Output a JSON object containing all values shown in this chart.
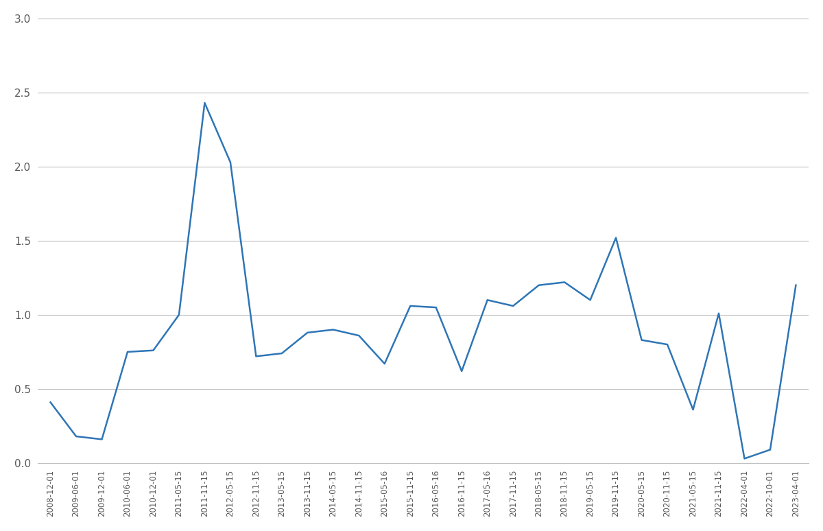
{
  "labels": [
    "2008-12-01",
    "2009-06-01",
    "2009-12-01",
    "2010-06-01",
    "2010-12-01",
    "2011-05-15",
    "2011-11-15",
    "2012-05-15",
    "2012-11-15",
    "2013-05-15",
    "2013-11-15",
    "2014-05-15",
    "2014-11-15",
    "2015-05-16",
    "2015-11-15",
    "2016-05-16",
    "2016-11-15",
    "2017-05-16",
    "2017-11-15",
    "2018-05-15",
    "2018-11-15",
    "2019-05-15",
    "2019-11-15",
    "2020-05-15",
    "2020-11-15",
    "2021-05-15",
    "2021-11-15",
    "2022-04-01",
    "2022-10-01",
    "2023-04-01"
  ],
  "values": [
    0.41,
    0.18,
    0.16,
    0.75,
    0.76,
    1.0,
    2.43,
    2.03,
    0.72,
    0.74,
    0.88,
    0.9,
    0.86,
    0.67,
    1.06,
    1.05,
    0.62,
    1.1,
    1.06,
    1.2,
    1.22,
    1.1,
    1.52,
    0.83,
    0.8,
    0.36,
    1.01,
    0.03,
    0.09,
    1.2
  ],
  "line_color": "#2E75B6",
  "line_width": 1.8,
  "ylim_min": 0,
  "ylim_max": 3.0,
  "yticks": [
    0,
    0.5,
    1.0,
    1.5,
    2.0,
    2.5,
    3.0
  ],
  "background_color": "#ffffff",
  "grid_color": "#bfbfbf"
}
